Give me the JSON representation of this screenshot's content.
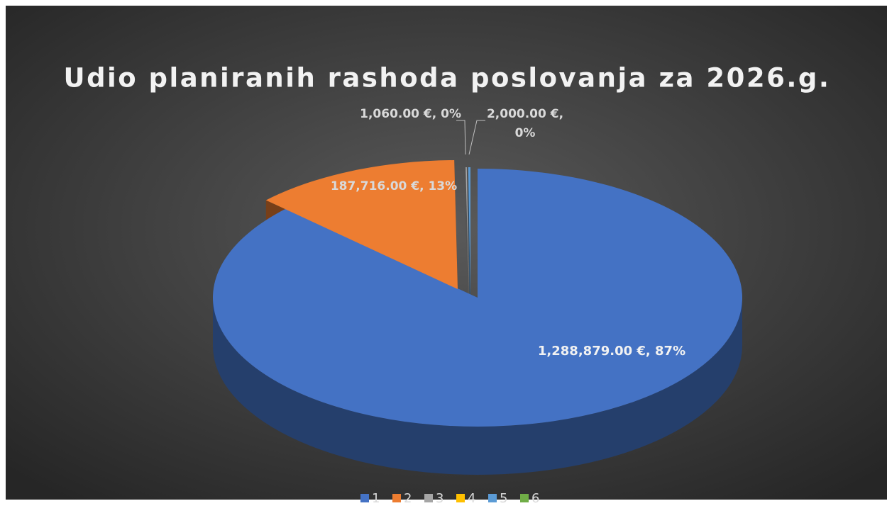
{
  "chart_data": {
    "type": "pie",
    "title": "Udio planiranih rashoda poslovanja za 2026.g.",
    "categories": [
      "1",
      "2",
      "3",
      "4",
      "5",
      "6"
    ],
    "values": [
      1288879,
      187716,
      1060,
      0,
      2000,
      0
    ],
    "value_labels": [
      "1,288,879.00 €, 87%",
      "187,716.00 €, 13%",
      "1,060.00 €, 0%",
      null,
      "2,000.00 €, 0%",
      null
    ],
    "colors": [
      "#4472c4",
      "#ed7d31",
      "#a5a5a5",
      "#ffc000",
      "#5b9bd5",
      "#70ad47"
    ],
    "legend": "bottom"
  }
}
